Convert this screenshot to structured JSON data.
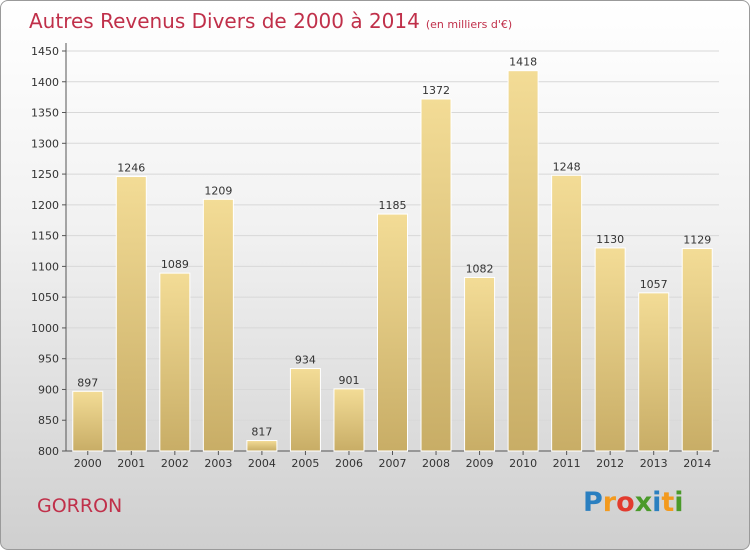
{
  "title": "Autres Revenus Divers de 2000 à 2014",
  "subtitle": "(en milliers d'€)",
  "town": "GORRON",
  "logo": {
    "text": "Proxiti",
    "letters": [
      {
        "ch": "P",
        "color": "#2a7fc0"
      },
      {
        "ch": "r",
        "color": "#f39a1e"
      },
      {
        "ch": "o",
        "color": "#e23b2e"
      },
      {
        "ch": "x",
        "color": "#4a9a2a"
      },
      {
        "ch": "i",
        "color": "#2a7fc0"
      },
      {
        "ch": "t",
        "color": "#f39a1e"
      },
      {
        "ch": "i",
        "color": "#4a9a2a"
      }
    ]
  },
  "colors": {
    "title": "#c0304a",
    "bar_top": "#f3dc96",
    "bar_bottom": "#c8ad66",
    "grid": "#d8d8d8",
    "axis": "#555555"
  },
  "chart_data": {
    "type": "bar",
    "title": "Autres Revenus Divers de 2000 à 2014",
    "xlabel": "",
    "ylabel": "",
    "ylim": [
      800,
      1450
    ],
    "yticks": [
      800,
      850,
      900,
      950,
      1000,
      1050,
      1100,
      1150,
      1200,
      1250,
      1300,
      1350,
      1400,
      1450
    ],
    "grid": true,
    "categories": [
      "2000",
      "2001",
      "2002",
      "2003",
      "2004",
      "2005",
      "2006",
      "2007",
      "2008",
      "2009",
      "2010",
      "2011",
      "2012",
      "2013",
      "2014"
    ],
    "values": [
      897,
      1246,
      1089,
      1209,
      817,
      934,
      901,
      1185,
      1372,
      1082,
      1418,
      1248,
      1130,
      1057,
      1129
    ]
  }
}
